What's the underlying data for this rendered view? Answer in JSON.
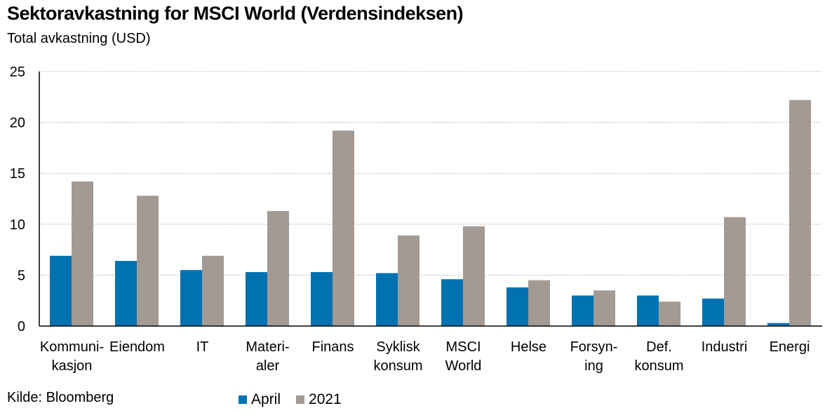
{
  "title": "Sektoravkastning for MSCI World (Verdensindeksen)",
  "subtitle": "Total avkastning (USD)",
  "source": "Kilde: Bloomberg",
  "colors": {
    "april": "#0072b2",
    "y2021": "#a39a93",
    "grid": "#b5b5b5",
    "axis": "#000000"
  },
  "chart_data": {
    "type": "bar",
    "categories": [
      [
        "Kommuni-",
        "kasjon"
      ],
      [
        "Eiendom"
      ],
      [
        "IT"
      ],
      [
        "Materi-",
        "aler"
      ],
      [
        "Finans"
      ],
      [
        "Syklisk",
        "konsum"
      ],
      [
        "MSCI",
        "World"
      ],
      [
        "Helse"
      ],
      [
        "Forsyn-",
        "ing"
      ],
      [
        "Def.",
        "konsum"
      ],
      [
        "Industri"
      ],
      [
        "Energi"
      ]
    ],
    "series": [
      {
        "name": "April",
        "values": [
          6.9,
          6.4,
          5.5,
          5.3,
          5.3,
          5.2,
          4.6,
          3.8,
          3.0,
          3.0,
          2.7,
          0.3
        ]
      },
      {
        "name": "2021",
        "values": [
          14.2,
          12.8,
          6.9,
          11.3,
          19.2,
          8.9,
          9.8,
          4.5,
          3.5,
          2.4,
          10.7,
          22.2
        ]
      }
    ],
    "yticks": [
      0,
      5,
      10,
      15,
      20,
      25
    ],
    "ylim": [
      0,
      25
    ],
    "grid": true,
    "legend_position": "bottom"
  }
}
